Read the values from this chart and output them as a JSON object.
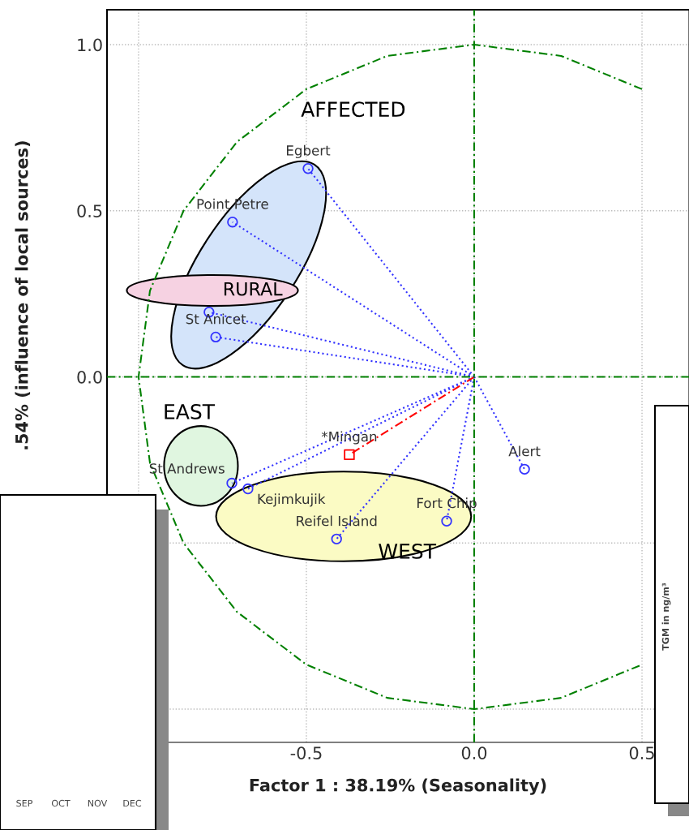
{
  "chart_data": {
    "type": "scatter",
    "xlabel": "Factor 1 : 38.19% (Seasonality)",
    "ylabel": ".54% (influence of local sources)",
    "xlim": [
      -1.094,
      0.64
    ],
    "ylim": [
      -1.1,
      1.105
    ],
    "xticks": [
      {
        "value": -1.0,
        "label": null
      },
      {
        "value": -0.5,
        "label": "-0.5"
      },
      {
        "value": 0.0,
        "label": "0.0"
      },
      {
        "value": 0.5,
        "label": "0.5"
      }
    ],
    "yticks": [
      {
        "value": -1.0,
        "label": null
      },
      {
        "value": -0.5,
        "label": null
      },
      {
        "value": 0.0,
        "label": "0.0"
      },
      {
        "value": 0.5,
        "label": "0.5"
      },
      {
        "value": 1.0,
        "label": "1.0"
      }
    ],
    "grid": true,
    "marker": "circle",
    "series": [
      {
        "type": "line",
        "line_style": "dotted",
        "marker": "none",
        "color": "#3333ff",
        "x": [
          0,
          -0.495,
          null,
          0,
          -0.72,
          null,
          0,
          -0.79,
          null,
          0,
          -0.77,
          null,
          0,
          -0.722,
          null,
          0,
          -0.674,
          null,
          0,
          -0.41,
          null,
          0,
          -0.082,
          null,
          0,
          0.15
        ],
        "values": [
          0,
          0.627,
          null,
          0,
          0.466,
          null,
          0,
          0.195,
          null,
          0,
          0.12,
          null,
          0,
          -0.32,
          null,
          0,
          -0.337,
          null,
          0,
          -0.488,
          null,
          0,
          -0.434,
          null,
          0,
          -0.278
        ]
      },
      {
        "color": "#3333ff",
        "x": [
          -0.495,
          -0.72,
          -0.79,
          -0.77,
          -0.722,
          -0.674,
          -0.41,
          -0.082,
          0.15
        ],
        "values": [
          0.627,
          0.466,
          0.195,
          0.12,
          -0.32,
          -0.337,
          -0.488,
          -0.434,
          -0.278
        ]
      },
      {
        "type": "line",
        "line_style": "dashed",
        "marker": "none",
        "color": "#ff0000",
        "x": [
          0,
          -0.372
        ],
        "values": [
          0,
          -0.234
        ]
      },
      {
        "color": "#ff0000",
        "marker": "square",
        "x": [
          -0.372
        ],
        "values": [
          -0.234
        ]
      },
      {
        "type": "line",
        "line_style": "dashed",
        "marker": "none",
        "color": "#008000",
        "x": [
          0,
          0
        ],
        "values": [
          -1.1,
          1.105
        ]
      },
      {
        "type": "line",
        "line_style": "dashed",
        "marker": "none",
        "color": "#008000",
        "x": [
          -1.094,
          0.64
        ],
        "values": [
          0,
          0
        ]
      },
      {
        "type": "line",
        "line_style": "dashed",
        "marker": "none",
        "color": "#008000",
        "x": [
          0.5,
          0.259,
          0,
          -0.259,
          -0.5,
          -0.707,
          -0.866,
          -0.966,
          -1,
          -0.966,
          -0.866,
          -0.707,
          -0.5,
          -0.259,
          0,
          0.259,
          0.5
        ],
        "values": [
          0.866,
          0.966,
          1,
          0.966,
          0.866,
          0.707,
          0.5,
          0.259,
          0,
          -0.259,
          -0.5,
          -0.707,
          -0.866,
          -0.966,
          -1,
          -0.966,
          -0.866
        ]
      }
    ],
    "annotations": [
      {
        "text": "Egbert",
        "x": -0.495,
        "y": 0.627
      },
      {
        "text": "Point Petre",
        "x": -0.72,
        "y": 0.466
      },
      {
        "text": "St Anicet",
        "x": -0.77,
        "y": 0.12
      },
      {
        "text": "St Andrews",
        "x": -0.722,
        "y": -0.32
      },
      {
        "text": "Kejimkujik",
        "x": -0.674,
        "y": -0.337
      },
      {
        "text": "Reifel Island",
        "x": -0.41,
        "y": -0.488
      },
      {
        "text": "Fort Chip",
        "x": -0.082,
        "y": -0.434
      },
      {
        "text": "Alert",
        "x": 0.15,
        "y": -0.278
      },
      {
        "text": "*Mingan",
        "x": -0.372,
        "y": -0.234
      },
      "AFFECTED",
      "RURAL",
      "EAST",
      "WEST",
      "TGM in ng/m³",
      "SEP",
      "OCT",
      "NOV",
      "DEC"
    ]
  }
}
